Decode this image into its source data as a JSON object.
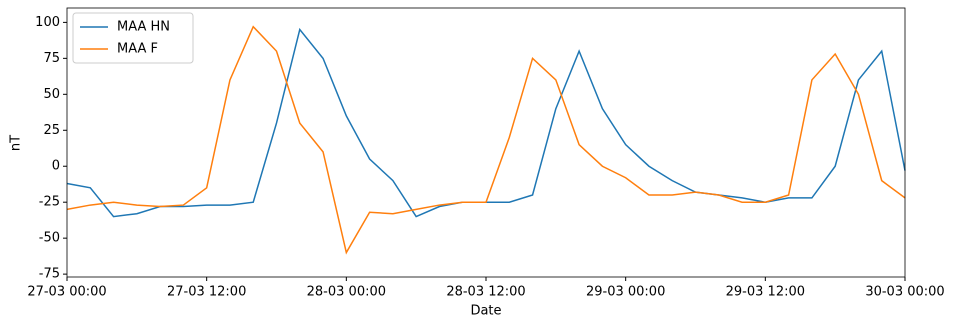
{
  "chart_data": {
    "type": "line",
    "xlabel": "Date",
    "ylabel": "nT",
    "x": [
      "27-03 00:00",
      "27-03 02:00",
      "27-03 04:00",
      "27-03 06:00",
      "27-03 08:00",
      "27-03 10:00",
      "27-03 12:00",
      "27-03 14:00",
      "27-03 16:00",
      "27-03 18:00",
      "27-03 20:00",
      "27-03 22:00",
      "28-03 00:00",
      "28-03 02:00",
      "28-03 04:00",
      "28-03 06:00",
      "28-03 08:00",
      "28-03 10:00",
      "28-03 12:00",
      "28-03 14:00",
      "28-03 16:00",
      "28-03 18:00",
      "28-03 20:00",
      "28-03 22:00",
      "29-03 00:00",
      "29-03 02:00",
      "29-03 04:00",
      "29-03 06:00",
      "29-03 08:00",
      "29-03 10:00",
      "29-03 12:00",
      "29-03 14:00",
      "29-03 16:00",
      "29-03 18:00",
      "29-03 20:00",
      "29-03 22:00",
      "30-03 00:00"
    ],
    "series": [
      {
        "name": "MAA HN",
        "color": "#1f77b4",
        "values": [
          -12,
          -15,
          -35,
          -33,
          -28,
          -28,
          -27,
          -27,
          -25,
          30,
          95,
          75,
          35,
          5,
          -10,
          -35,
          -28,
          -25,
          -25,
          -25,
          -20,
          40,
          80,
          40,
          15,
          0,
          -10,
          -18,
          -20,
          -22,
          -25,
          -22,
          -22,
          0,
          60,
          80,
          -3
        ]
      },
      {
        "name": "MAA F",
        "color": "#ff7f0e",
        "values": [
          -30,
          -27,
          -25,
          -27,
          -28,
          -27,
          -15,
          60,
          97,
          80,
          30,
          10,
          -60,
          -32,
          -33,
          -30,
          -27,
          -25,
          -25,
          20,
          75,
          60,
          15,
          0,
          -8,
          -20,
          -20,
          -18,
          -20,
          -25,
          -25,
          -20,
          60,
          78,
          50,
          -10,
          -22
        ]
      }
    ],
    "xlim": [
      "27-03 00:00",
      "30-03 00:00"
    ],
    "xticks": [
      "27-03 00:00",
      "27-03 12:00",
      "28-03 00:00",
      "28-03 12:00",
      "29-03 00:00",
      "29-03 12:00",
      "30-03 00:00"
    ],
    "ylim": [
      -77,
      110
    ],
    "yticks": [
      -75,
      -50,
      -25,
      0,
      25,
      50,
      75,
      100
    ],
    "legend": "upper left"
  }
}
